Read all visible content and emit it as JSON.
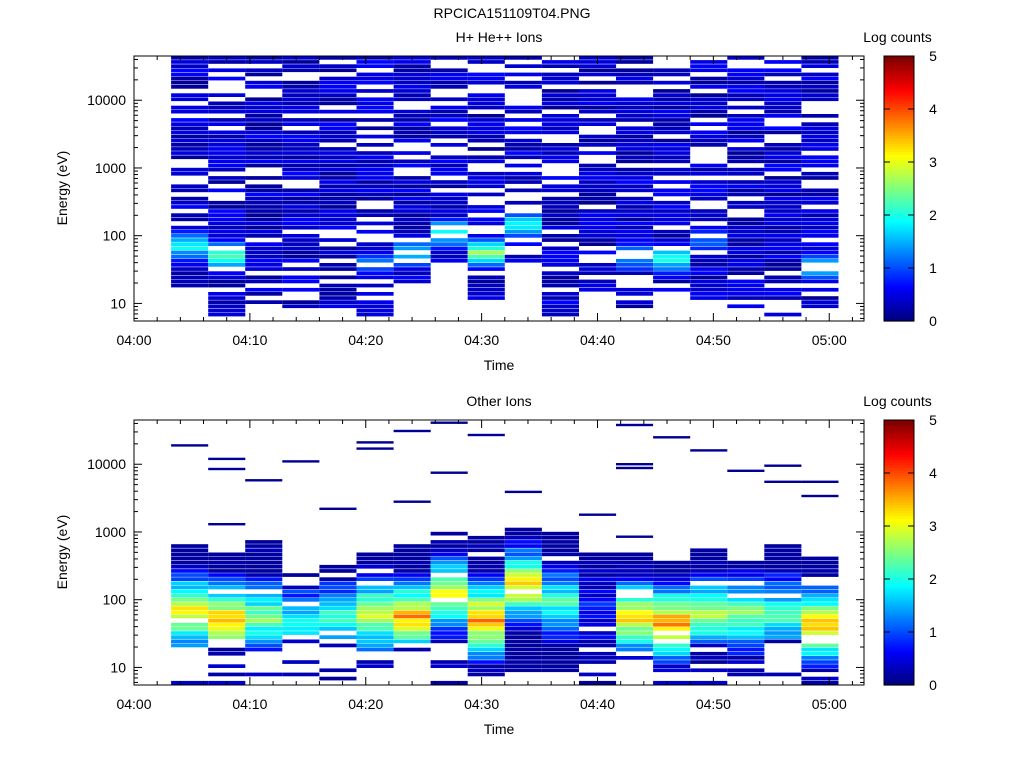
{
  "figure": {
    "title": "RPCICA151109T04.PNG",
    "colorbar_colors": [
      "#00007f",
      "#0000ff",
      "#007fff",
      "#00ffff",
      "#7fff7f",
      "#ffff00",
      "#ff7f00",
      "#ff0000",
      "#7f0000"
    ]
  },
  "chart_data": [
    {
      "type": "heatmap",
      "title": "H+ He++ Ions",
      "xlabel": "Time",
      "ylabel": "Energy (eV)",
      "colorbar_label": "Log counts",
      "colorbar_ticks": [
        "0",
        "1",
        "2",
        "3",
        "4",
        "5"
      ],
      "colorbar_range": [
        0,
        5
      ],
      "x_ticks": [
        "04:00",
        "04:10",
        "04:20",
        "04:30",
        "04:40",
        "04:50",
        "05:00"
      ],
      "x_range_minutes": [
        0,
        63
      ],
      "y_scale": "log",
      "y_range": [
        5.5,
        45000
      ],
      "y_ticks": [
        {
          "value": 10,
          "label": "10"
        },
        {
          "value": 100,
          "label": "100"
        },
        {
          "value": 1000,
          "label": "1000"
        },
        {
          "value": 10000,
          "label": "10000"
        }
      ],
      "time_bins": [
        {
          "start": 3.2,
          "end": 6.4,
          "low": 16,
          "peak": 70,
          "peak_level": 1.9
        },
        {
          "start": 6.4,
          "end": 9.6,
          "low": 6,
          "peak": 50,
          "peak_level": 2.2
        },
        {
          "start": 9.6,
          "end": 12.8,
          "low": 9,
          "peak": 0,
          "peak_level": 0
        },
        {
          "start": 12.8,
          "end": 16.0,
          "low": 9,
          "peak": 0,
          "peak_level": 0
        },
        {
          "start": 16.0,
          "end": 19.2,
          "low": 9,
          "peak": 0,
          "peak_level": 0
        },
        {
          "start": 19.2,
          "end": 22.4,
          "low": 6,
          "peak": 40,
          "peak_level": 1.0
        },
        {
          "start": 22.4,
          "end": 25.6,
          "low": 18,
          "peak": 55,
          "peak_level": 1.8
        },
        {
          "start": 25.6,
          "end": 28.8,
          "low": 38,
          "peak": 110,
          "peak_level": 2.0
        },
        {
          "start": 28.8,
          "end": 32.0,
          "low": 9,
          "peak": 55,
          "peak_level": 2.6
        },
        {
          "start": 32.0,
          "end": 35.2,
          "low": 38,
          "peak": 140,
          "peak_level": 1.9
        },
        {
          "start": 35.2,
          "end": 38.4,
          "low": 6,
          "peak": 0,
          "peak_level": 0
        },
        {
          "start": 38.4,
          "end": 41.6,
          "low": 14,
          "peak": 0,
          "peak_level": 0
        },
        {
          "start": 41.6,
          "end": 44.8,
          "low": 9,
          "peak": 50,
          "peak_level": 1.6
        },
        {
          "start": 44.8,
          "end": 48.0,
          "low": 14,
          "peak": 45,
          "peak_level": 2.0
        },
        {
          "start": 48.0,
          "end": 51.2,
          "low": 9,
          "peak": 80,
          "peak_level": 1.1
        },
        {
          "start": 51.2,
          "end": 54.4,
          "low": 9,
          "peak": 0,
          "peak_level": 0
        },
        {
          "start": 54.4,
          "end": 57.6,
          "low": 6,
          "peak": 0,
          "peak_level": 0
        },
        {
          "start": 57.6,
          "end": 60.8,
          "low": 9,
          "peak": 35,
          "peak_level": 1.7
        }
      ]
    },
    {
      "type": "heatmap",
      "title": "Other Ions",
      "xlabel": "Time",
      "ylabel": "Energy (eV)",
      "colorbar_label": "Log counts",
      "colorbar_ticks": [
        "0",
        "1",
        "2",
        "3",
        "4",
        "5"
      ],
      "colorbar_range": [
        0,
        5
      ],
      "x_ticks": [
        "04:00",
        "04:10",
        "04:20",
        "04:30",
        "04:40",
        "04:50",
        "05:00"
      ],
      "x_range_minutes": [
        0,
        63
      ],
      "y_scale": "log",
      "y_range": [
        5.5,
        45000
      ],
      "y_ticks": [
        {
          "value": 10,
          "label": "10"
        },
        {
          "value": 100,
          "label": "100"
        },
        {
          "value": 1000,
          "label": "1000"
        },
        {
          "value": 10000,
          "label": "10000"
        }
      ],
      "time_bins": [
        {
          "start": 3.2,
          "end": 6.4,
          "top": 700,
          "peak": 65,
          "peak_level": 3.3,
          "bottom": 20,
          "sparse": [
            19000
          ]
        },
        {
          "start": 6.4,
          "end": 9.6,
          "top": 520,
          "peak": 50,
          "peak_level": 3.6,
          "bottom": 25,
          "sparse": [
            12000,
            8500,
            1300
          ]
        },
        {
          "start": 9.6,
          "end": 12.8,
          "top": 800,
          "peak": 55,
          "peak_level": 2.6,
          "bottom": 16,
          "sparse": [
            5800
          ]
        },
        {
          "start": 12.8,
          "end": 16.0,
          "top": 260,
          "peak": 45,
          "peak_level": 2.0,
          "bottom": 25,
          "sparse": [
            11000
          ]
        },
        {
          "start": 16.0,
          "end": 19.2,
          "top": 400,
          "peak": 50,
          "peak_level": 2.3,
          "bottom": 25,
          "sparse": [
            2200
          ]
        },
        {
          "start": 19.2,
          "end": 22.4,
          "top": 500,
          "peak": 60,
          "peak_level": 3.0,
          "bottom": 16,
          "sparse": [
            21000,
            17000
          ]
        },
        {
          "start": 22.4,
          "end": 25.6,
          "top": 680,
          "peak": 55,
          "peak_level": 3.6,
          "bottom": 22,
          "sparse": [
            31000,
            2800
          ]
        },
        {
          "start": 25.6,
          "end": 28.8,
          "top": 950,
          "peak": 120,
          "peak_level": 3.2,
          "bottom": 22,
          "sparse": [
            41000,
            7500
          ]
        },
        {
          "start": 28.8,
          "end": 32.0,
          "top": 900,
          "peak": 50,
          "peak_level": 3.8,
          "bottom": 8,
          "sparse": [
            27000
          ]
        },
        {
          "start": 32.0,
          "end": 35.2,
          "top": 1100,
          "peak": 160,
          "peak_level": 3.3,
          "bottom": 8,
          "sparse": [
            3900
          ]
        },
        {
          "start": 35.2,
          "end": 38.4,
          "top": 1000,
          "peak": 90,
          "peak_level": 2.2,
          "bottom": 8,
          "sparse": []
        },
        {
          "start": 38.4,
          "end": 41.6,
          "top": 500,
          "peak": 70,
          "peak_level": 0.8,
          "bottom": 12,
          "sparse": [
            1800
          ]
        },
        {
          "start": 41.6,
          "end": 44.8,
          "top": 500,
          "peak": 55,
          "peak_level": 3.4,
          "bottom": 12,
          "sparse": [
            38000,
            10000,
            8800,
            850
          ]
        },
        {
          "start": 44.8,
          "end": 48.0,
          "top": 350,
          "peak": 45,
          "peak_level": 3.8,
          "bottom": 8,
          "sparse": [
            25000
          ]
        },
        {
          "start": 48.0,
          "end": 51.2,
          "top": 600,
          "peak": 60,
          "peak_level": 2.9,
          "bottom": 22,
          "sparse": [
            16000
          ]
        },
        {
          "start": 51.2,
          "end": 54.4,
          "top": 420,
          "peak": 60,
          "peak_level": 2.6,
          "bottom": 8,
          "sparse": [
            8000
          ]
        },
        {
          "start": 54.4,
          "end": 57.6,
          "top": 620,
          "peak": 60,
          "peak_level": 2.3,
          "bottom": 25,
          "sparse": [
            9500,
            5500
          ]
        },
        {
          "start": 57.6,
          "end": 60.8,
          "top": 450,
          "peak": 40,
          "peak_level": 3.6,
          "bottom": 8,
          "sparse": [
            5500,
            3400
          ]
        }
      ]
    }
  ]
}
